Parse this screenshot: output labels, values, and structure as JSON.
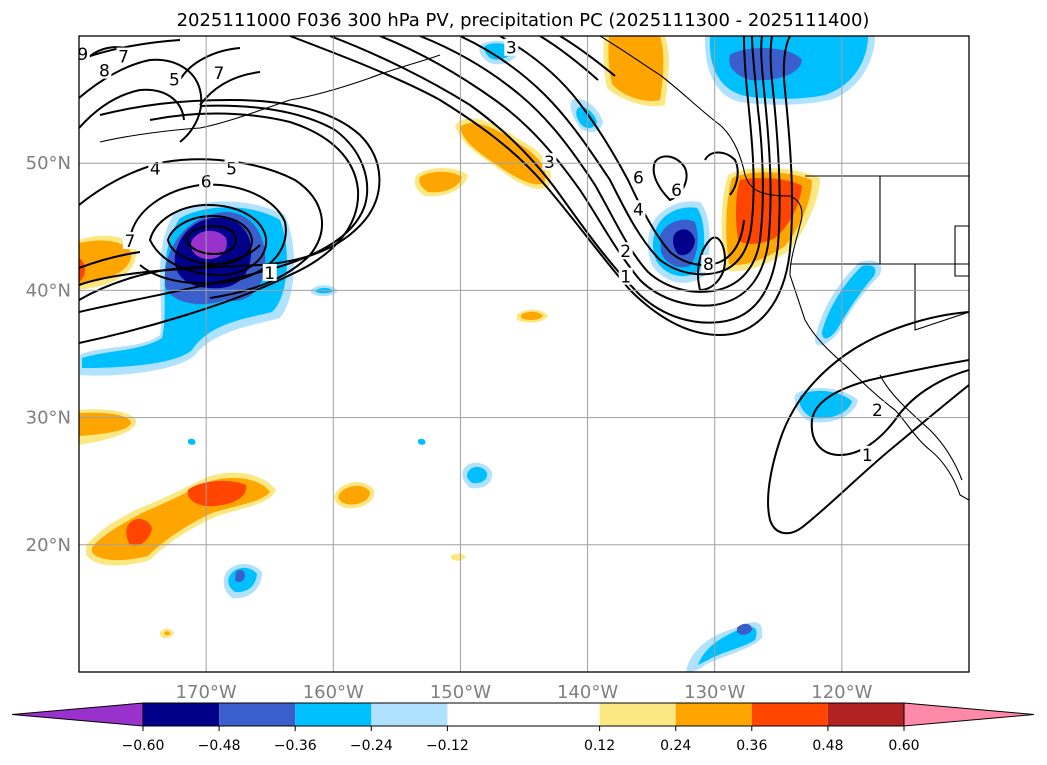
{
  "chart_data": {
    "type": "contour-map",
    "title": "2025111000 F036 300 hPa PV, precipitation PC (2025111300 - 2025111400)",
    "lon_range": [
      -180,
      -110
    ],
    "lat_range": [
      10,
      60
    ],
    "lon_ticks": [
      {
        "lon": -170,
        "label": "170°W"
      },
      {
        "lon": -160,
        "label": "160°W"
      },
      {
        "lon": -150,
        "label": "150°W"
      },
      {
        "lon": -140,
        "label": "140°W"
      },
      {
        "lon": -130,
        "label": "130°W"
      },
      {
        "lon": -120,
        "label": "120°W"
      }
    ],
    "lat_ticks": [
      {
        "lat": 50,
        "label": "50°N"
      },
      {
        "lat": 40,
        "label": "40°N"
      },
      {
        "lat": 30,
        "label": "30°N"
      },
      {
        "lat": 20,
        "label": "20°N"
      }
    ],
    "colorbar": {
      "levels": [
        -0.72,
        -0.6,
        -0.48,
        -0.36,
        -0.24,
        -0.12,
        0.12,
        0.24,
        0.36,
        0.48,
        0.6,
        0.72
      ],
      "tick_values": [
        -0.6,
        -0.48,
        -0.36,
        -0.24,
        -0.12,
        0.12,
        0.24,
        0.36,
        0.48,
        0.6
      ],
      "tick_labels": [
        "−0.60",
        "−0.48",
        "−0.36",
        "−0.24",
        "−0.12",
        "0.12",
        "0.24",
        "0.36",
        "0.48",
        "0.60"
      ],
      "colors": [
        "#9932cc",
        "#00008b",
        "#3a5fcd",
        "#00bfff",
        "#b0e2ff",
        "#ffffff",
        "#fce883",
        "#ffa500",
        "#ff4500",
        "#b22222",
        "#ff89a8"
      ],
      "extend": "both"
    },
    "contour_labels": [
      {
        "text": "4",
        "lon": -174.0,
        "lat": 49.5
      },
      {
        "text": "5",
        "lon": -168.0,
        "lat": 49.5
      },
      {
        "text": "6",
        "lon": -170.0,
        "lat": 48.5
      },
      {
        "text": "7",
        "lon": -176.0,
        "lat": 43.8
      },
      {
        "text": "5",
        "lon": -172.5,
        "lat": 56.5
      },
      {
        "text": "7",
        "lon": -169.0,
        "lat": 57.0
      },
      {
        "text": "8",
        "lon": -178.0,
        "lat": 57.2
      },
      {
        "text": "7",
        "lon": -176.5,
        "lat": 58.3
      },
      {
        "text": "9",
        "lon": -179.7,
        "lat": 58.5
      },
      {
        "text": "1",
        "lon": -165.0,
        "lat": 41.3
      },
      {
        "text": "3",
        "lon": -146.0,
        "lat": 59.0
      },
      {
        "text": "3",
        "lon": -143.0,
        "lat": 50.0
      },
      {
        "text": "6",
        "lon": -136.0,
        "lat": 48.8
      },
      {
        "text": "4",
        "lon": -136.0,
        "lat": 46.3
      },
      {
        "text": "2",
        "lon": -137.0,
        "lat": 43.0
      },
      {
        "text": "1",
        "lon": -137.0,
        "lat": 41.0
      },
      {
        "text": "6",
        "lon": -133.0,
        "lat": 47.8
      },
      {
        "text": "8",
        "lon": -130.5,
        "lat": 42.0
      },
      {
        "text": "2",
        "lon": -117.2,
        "lat": 30.5
      },
      {
        "text": "1",
        "lon": -118.0,
        "lat": 27.0
      }
    ]
  }
}
